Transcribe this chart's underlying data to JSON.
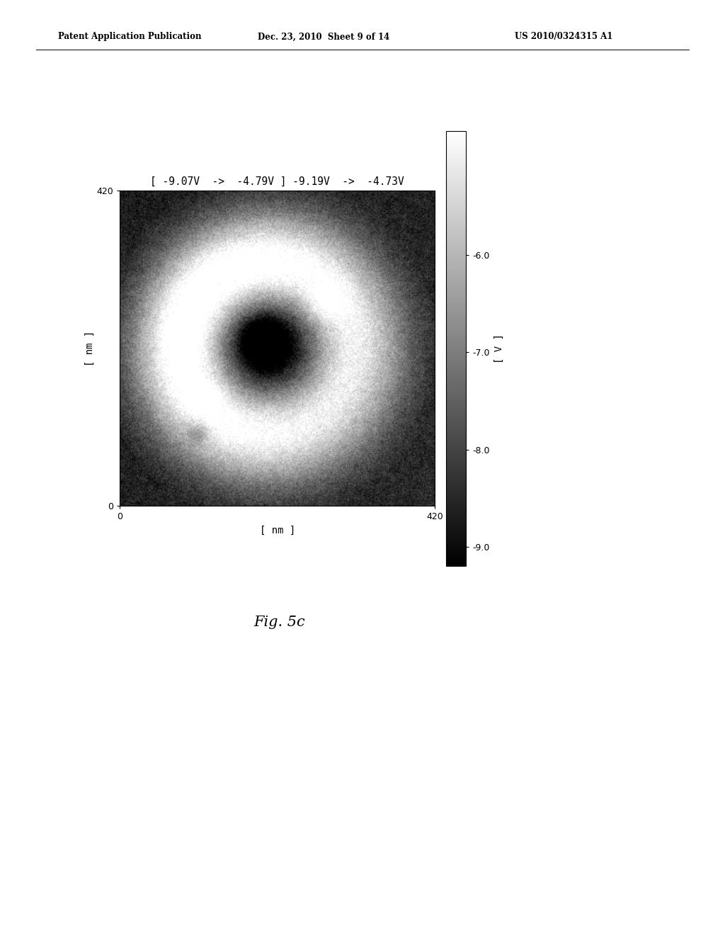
{
  "title": "[ -9.07V  ->  -4.79V ] -9.19V  ->  -4.73V",
  "xlabel": "[ nm ]",
  "ylabel": "[ nm ]",
  "colorbar_label": "[ V ]",
  "xmin": 0,
  "xmax": 420,
  "ymin": 0,
  "ymax": 420,
  "xticks": [
    0,
    420
  ],
  "yticks": [
    0,
    420
  ],
  "colorbar_ticks": [
    -9.0,
    -8.0,
    -7.0,
    -6.0
  ],
  "colorbar_min": -9.19,
  "colorbar_max": -4.73,
  "header_left": "Patent Application Publication",
  "header_center": "Dec. 23, 2010  Sheet 9 of 14",
  "header_right": "US 2010/0324315 A1",
  "fig_label": "Fig. 5c",
  "background_color": "#ffffff",
  "image_size": 300,
  "noise_scale": 0.25,
  "grain_scale": 0.08
}
